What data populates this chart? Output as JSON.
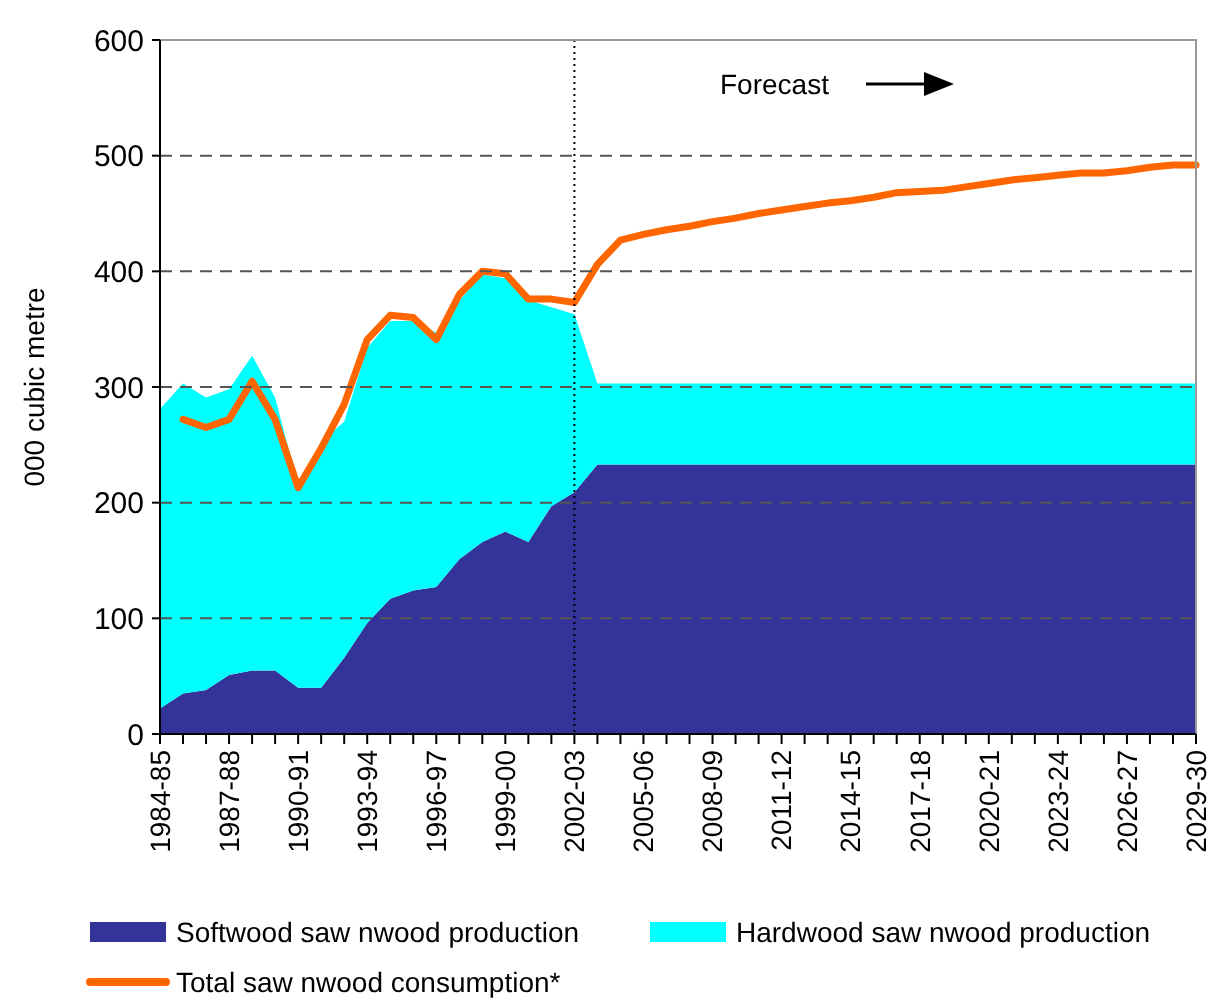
{
  "chart_data": {
    "type": "area",
    "stacked": true,
    "ylabel": "000 cubic metre",
    "categories": [
      "1984-85",
      null,
      null,
      "1987-88",
      null,
      null,
      "1990-91",
      null,
      null,
      "1993-94",
      null,
      null,
      "1996-97",
      null,
      null,
      "1999-00",
      null,
      null,
      "2002-03",
      null,
      null,
      "2005-06",
      null,
      null,
      "2008-09",
      null,
      null,
      "2011-12",
      null,
      null,
      "2014-15",
      null,
      null,
      "2017-18",
      null,
      null,
      "2020-21",
      null,
      null,
      "2023-24",
      null,
      null,
      "2026-27",
      null,
      null,
      "2029-30"
    ],
    "series": [
      {
        "name": "Softwood saw nwood production",
        "color": "#333399",
        "values": [
          22,
          35,
          38,
          51,
          55,
          55,
          40,
          40,
          66,
          96,
          117,
          124,
          127,
          151,
          166,
          175,
          166,
          197,
          209,
          233,
          233,
          233,
          233,
          233,
          233,
          233,
          233,
          233,
          233,
          233,
          233,
          233,
          233,
          233,
          233,
          233,
          233,
          233,
          233,
          233,
          233,
          233,
          233,
          233,
          233,
          233
        ]
      },
      {
        "name": "Hardwood saw nwood production",
        "color": "#00ffff",
        "values": [
          259,
          268,
          253,
          247,
          272,
          236,
          175,
          213,
          204,
          238,
          240,
          233,
          220,
          224,
          231,
          219,
          209,
          172,
          154,
          70,
          70,
          70,
          70,
          70,
          70,
          70,
          70,
          70,
          70,
          70,
          70,
          70,
          70,
          70,
          70,
          70,
          70,
          70,
          70,
          70,
          70,
          70,
          70,
          70,
          70,
          70
        ]
      },
      {
        "name": "Total saw nwood consumption*",
        "color": "#ff6600",
        "type": "line",
        "values": [
          null,
          272,
          265,
          272,
          305,
          272,
          213,
          247,
          285,
          341,
          362,
          360,
          341,
          380,
          400,
          398,
          376,
          376,
          373,
          406,
          427,
          432,
          436,
          439,
          443,
          446,
          450,
          453,
          456,
          459,
          461,
          464,
          468,
          469,
          470,
          473,
          476,
          479,
          481,
          483,
          485,
          485,
          487,
          490,
          492,
          492
        ]
      }
    ],
    "ylim": [
      0,
      600
    ],
    "yticks": [
      0,
      100,
      200,
      300,
      400,
      500,
      600
    ],
    "grid": "y",
    "legend": "bottom",
    "ref_lines": [
      {
        "axis": "x",
        "value": "2002-03",
        "line_style": "dotted"
      }
    ],
    "annotations": [
      "Forecast"
    ]
  }
}
